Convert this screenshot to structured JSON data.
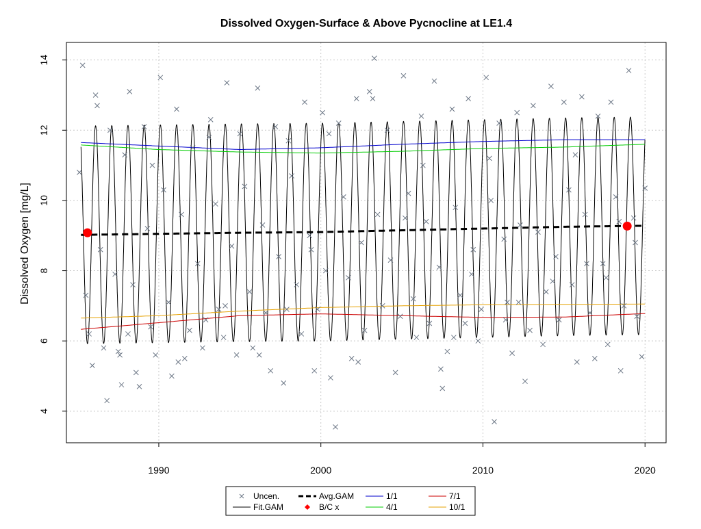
{
  "chart_data": {
    "type": "line",
    "title": "Dissolved Oxygen-Surface & Above Pycnocline at LE1.4",
    "xlabel": "",
    "ylabel": "Dissolved Oxygen [mg/L]",
    "xlim": [
      1984.3,
      2021.3
    ],
    "ylim": [
      3.1,
      14.5
    ],
    "x_ticks": [
      1990,
      2000,
      2010,
      2020
    ],
    "y_ticks": [
      4,
      6,
      8,
      10,
      12,
      14
    ],
    "grid": true,
    "legend_position": "bottom",
    "legend": [
      {
        "key": "uncen",
        "label": "Uncen.",
        "kind": "cross",
        "color": "#6b7685"
      },
      {
        "key": "avg",
        "label": "Avg.GAM",
        "kind": "dash",
        "color": "#000000"
      },
      {
        "key": "p1",
        "label": "1/1",
        "kind": "line",
        "color": "#0000cd"
      },
      {
        "key": "p7",
        "label": "7/1",
        "kind": "line",
        "color": "#cc0000"
      },
      {
        "key": "fit",
        "label": "Fit.GAM",
        "kind": "line",
        "color": "#000000"
      },
      {
        "key": "bc",
        "label": "B/C x",
        "kind": "diamond",
        "color": "#ff0000"
      },
      {
        "key": "p4",
        "label": "4/1",
        "kind": "line",
        "color": "#00cc00"
      },
      {
        "key": "p10",
        "label": "10/1",
        "kind": "line",
        "color": "#e6a100"
      }
    ],
    "fit_gam": {
      "color": "#000000",
      "x_range": [
        1985.2,
        2020.0
      ],
      "period_years": 1,
      "peak_phase": 0.1,
      "amplitude_mg_L": 3.1,
      "note_series": "seasonal curve = Avg.GAM + amplitude*cos(2π(x - year - peak_phase))"
    },
    "series": [
      {
        "key": "p1",
        "name": "1/1",
        "color": "#0000cd",
        "x": [
          1985.2,
          1990,
          1995,
          2000,
          2005,
          2010,
          2015,
          2020
        ],
        "y": [
          11.65,
          11.55,
          11.45,
          11.5,
          11.6,
          11.68,
          11.73,
          11.73
        ]
      },
      {
        "key": "p4",
        "name": "4/1",
        "color": "#00cc00",
        "x": [
          1985.2,
          1990,
          1995,
          2000,
          2005,
          2010,
          2015,
          2020
        ],
        "y": [
          11.58,
          11.45,
          11.38,
          11.35,
          11.4,
          11.48,
          11.52,
          11.6
        ]
      },
      {
        "key": "p7",
        "name": "7/1",
        "color": "#cc0000",
        "x": [
          1985.2,
          1990,
          1995,
          2000,
          2005,
          2010,
          2015,
          2020
        ],
        "y": [
          6.33,
          6.52,
          6.72,
          6.77,
          6.72,
          6.67,
          6.68,
          6.78
        ]
      },
      {
        "key": "p10",
        "name": "10/1",
        "color": "#e6a100",
        "x": [
          1985.2,
          1990,
          1995,
          2000,
          2005,
          2010,
          2015,
          2020
        ],
        "y": [
          6.65,
          6.72,
          6.85,
          6.95,
          7.0,
          7.03,
          7.04,
          7.05
        ]
      },
      {
        "key": "avg",
        "name": "Avg.GAM",
        "color": "#000000",
        "x": [
          1985.2,
          1990,
          1995,
          2000,
          2005,
          2010,
          2015,
          2020
        ],
        "y": [
          9.02,
          9.05,
          9.08,
          9.1,
          9.15,
          9.2,
          9.25,
          9.28
        ]
      }
    ],
    "bc_points": {
      "color": "#ff0000",
      "x": [
        1985.6,
        2018.9
      ],
      "y": [
        9.08,
        9.27
      ]
    },
    "uncen_points": {
      "color": "#6b7685",
      "x": [
        1985.1,
        1985.3,
        1985.5,
        1985.7,
        1985.9,
        1986.2,
        1986.4,
        1986.6,
        1986.8,
        1987.0,
        1987.3,
        1987.5,
        1987.7,
        1987.9,
        1988.2,
        1988.4,
        1988.6,
        1988.8,
        1989.1,
        1989.3,
        1989.5,
        1989.8,
        1990.1,
        1990.3,
        1990.6,
        1990.8,
        1991.1,
        1991.4,
        1991.6,
        1991.9,
        1992.1,
        1992.4,
        1992.7,
        1992.9,
        1993.2,
        1993.5,
        1993.7,
        1994.0,
        1994.2,
        1994.5,
        1994.8,
        1995.0,
        1995.3,
        1995.6,
        1995.8,
        1996.1,
        1996.4,
        1996.6,
        1996.9,
        1997.2,
        1997.4,
        1997.7,
        1998.0,
        1998.2,
        1998.5,
        1998.8,
        1999.0,
        1999.3,
        1999.6,
        1999.8,
        2000.1,
        2000.3,
        2000.6,
        2000.9,
        2001.1,
        2001.4,
        2001.7,
        2001.9,
        2002.2,
        2002.5,
        2002.7,
        2003.0,
        2003.3,
        2003.5,
        2003.8,
        2004.1,
        2004.3,
        2004.6,
        2004.9,
        2005.1,
        2005.4,
        2005.7,
        2005.9,
        2006.2,
        2006.5,
        2006.7,
        2007.0,
        2007.3,
        2007.5,
        2007.8,
        2008.1,
        2008.3,
        2008.6,
        2008.9,
        2009.1,
        2009.4,
        2009.7,
        2009.9,
        2010.2,
        2010.5,
        2010.7,
        2011.0,
        2011.3,
        2011.5,
        2011.8,
        2012.1,
        2012.3,
        2012.6,
        2012.9,
        2013.1,
        2013.4,
        2013.7,
        2013.9,
        2014.2,
        2014.5,
        2014.7,
        2015.0,
        2015.3,
        2015.5,
        2015.8,
        2016.1,
        2016.3,
        2016.6,
        2016.9,
        2017.1,
        2017.4,
        2017.7,
        2017.9,
        2018.2,
        2018.5,
        2018.7,
        2019.0,
        2019.3,
        2019.5,
        2019.8,
        2020.0,
        1986.1,
        1987.6,
        1988.1,
        1989.6,
        1991.2,
        1993.1,
        1994.1,
        1996.2,
        1997.9,
        1999.4,
        2000.5,
        2002.3,
        2003.2,
        2005.2,
        2006.3,
        2007.4,
        2008.2,
        2009.3,
        2010.4,
        2011.4,
        2012.2,
        2014.3,
        2015.7,
        2016.4,
        2017.6,
        2018.4,
        2019.4
      ],
      "y": [
        10.8,
        13.85,
        7.3,
        6.2,
        5.3,
        12.7,
        8.6,
        5.8,
        4.3,
        12.0,
        7.9,
        5.7,
        4.75,
        11.3,
        13.1,
        7.6,
        5.1,
        4.7,
        12.1,
        9.2,
        6.4,
        5.6,
        13.5,
        10.3,
        7.1,
        5.0,
        12.6,
        9.6,
        5.5,
        6.3,
        11.5,
        8.2,
        5.8,
        6.6,
        12.3,
        9.9,
        6.9,
        6.1,
        13.35,
        8.7,
        5.6,
        11.9,
        10.4,
        7.4,
        5.8,
        13.2,
        9.3,
        6.8,
        5.15,
        12.1,
        8.4,
        4.8,
        11.7,
        10.7,
        7.6,
        6.2,
        12.8,
        9.0,
        5.15,
        6.9,
        12.5,
        8.0,
        4.95,
        3.55,
        12.2,
        10.1,
        7.8,
        5.5,
        12.9,
        8.8,
        6.3,
        13.1,
        14.05,
        9.6,
        7.0,
        12.0,
        8.3,
        5.1,
        6.7,
        13.55,
        10.2,
        7.2,
        6.1,
        12.4,
        9.4,
        6.5,
        13.4,
        8.1,
        4.65,
        5.7,
        12.6,
        9.8,
        7.3,
        6.5,
        12.9,
        8.6,
        6.0,
        6.9,
        13.5,
        10.0,
        3.7,
        12.2,
        8.9,
        7.1,
        5.65,
        12.5,
        9.3,
        4.85,
        6.3,
        12.7,
        9.1,
        5.9,
        7.4,
        13.25,
        8.4,
        6.6,
        12.8,
        10.3,
        7.6,
        5.4,
        12.95,
        9.6,
        6.8,
        5.5,
        12.4,
        8.2,
        5.9,
        12.8,
        10.1,
        5.15,
        7.0,
        13.7,
        9.5,
        6.7,
        5.55,
        10.35,
        13.0,
        5.6,
        6.2,
        11.0,
        5.4,
        11.8,
        7.0,
        5.6,
        6.9,
        8.6,
        11.9,
        5.4,
        12.9,
        9.5,
        11.0,
        5.2,
        6.1,
        7.9,
        11.2,
        6.6,
        7.1,
        7.7,
        11.3,
        8.2,
        7.8,
        9.4,
        8.8
      ]
    }
  }
}
